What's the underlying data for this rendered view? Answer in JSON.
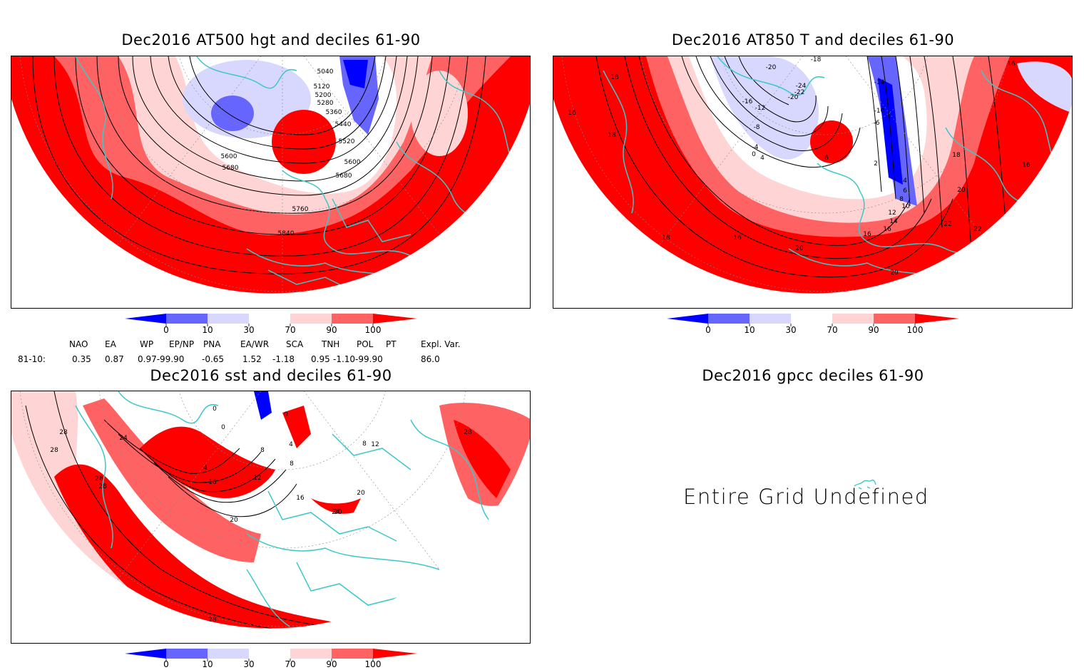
{
  "panels": {
    "p1": {
      "title": "Dec2016 AT500 hgt and deciles 61-90",
      "contour_labels": [
        "5040",
        "5120",
        "5200",
        "5280",
        "5360",
        "5440",
        "5520",
        "5600",
        "5680",
        "5600",
        "5680",
        "5760",
        "5840"
      ]
    },
    "p2": {
      "title": "Dec2016 AT850 T and deciles 61-90",
      "contour_labels": [
        "16",
        "18",
        "18",
        "16",
        "18",
        "16",
        "16",
        "20",
        "22",
        "22",
        "20",
        "18",
        "16",
        "20",
        "-18",
        "-20",
        "-16",
        "-12",
        "-8",
        "-4",
        "0",
        "4",
        "6",
        "-14",
        "-10",
        "-6",
        "2",
        "4",
        "6",
        "8",
        "10",
        "12",
        "14",
        "16",
        "-24",
        "-22",
        "-20"
      ]
    },
    "p3": {
      "title": "Dec2016 sst and deciles 61-90",
      "contour_labels": [
        "28",
        "28",
        "24",
        "28",
        "28",
        "4",
        "8",
        "12",
        "16",
        "20",
        "24",
        "28",
        "28",
        "0",
        "0",
        "0",
        "4",
        "8",
        "16",
        "20",
        "20",
        "8",
        "12",
        "28"
      ]
    },
    "p4": {
      "title": "Dec2016 gpcc deciles 61-90",
      "message": "Entire Grid Undefined"
    }
  },
  "colorbar": {
    "ticks": [
      "0",
      "10",
      "30",
      "70",
      "90",
      "100"
    ],
    "colors": [
      "#0000ff",
      "#6666ff",
      "#d8d8ff",
      "#ffffff",
      "#ffd4d4",
      "#ff6262",
      "#ff0000"
    ]
  },
  "indices": {
    "headers": [
      "NAO",
      "EA",
      "WP",
      "EP/NP",
      "PNA",
      "EA/WR",
      "SCA",
      "TNH",
      "POL",
      "PT",
      "Expl. Var."
    ],
    "row_label": "81-10:",
    "values": [
      "0.35",
      "0.87",
      "0.97-99.90",
      "-0.65",
      "1.52",
      "-1.18",
      "0.95",
      "-1.10-99.90",
      "86.0"
    ]
  },
  "map_colors": {
    "strong_red": "#ff0000",
    "mid_red": "#ff6262",
    "light_red": "#ffd4d4",
    "light_blue": "#d8d8ff",
    "mid_blue": "#6666ff",
    "strong_blue": "#0000ff",
    "coast": "#3cc8c8"
  }
}
